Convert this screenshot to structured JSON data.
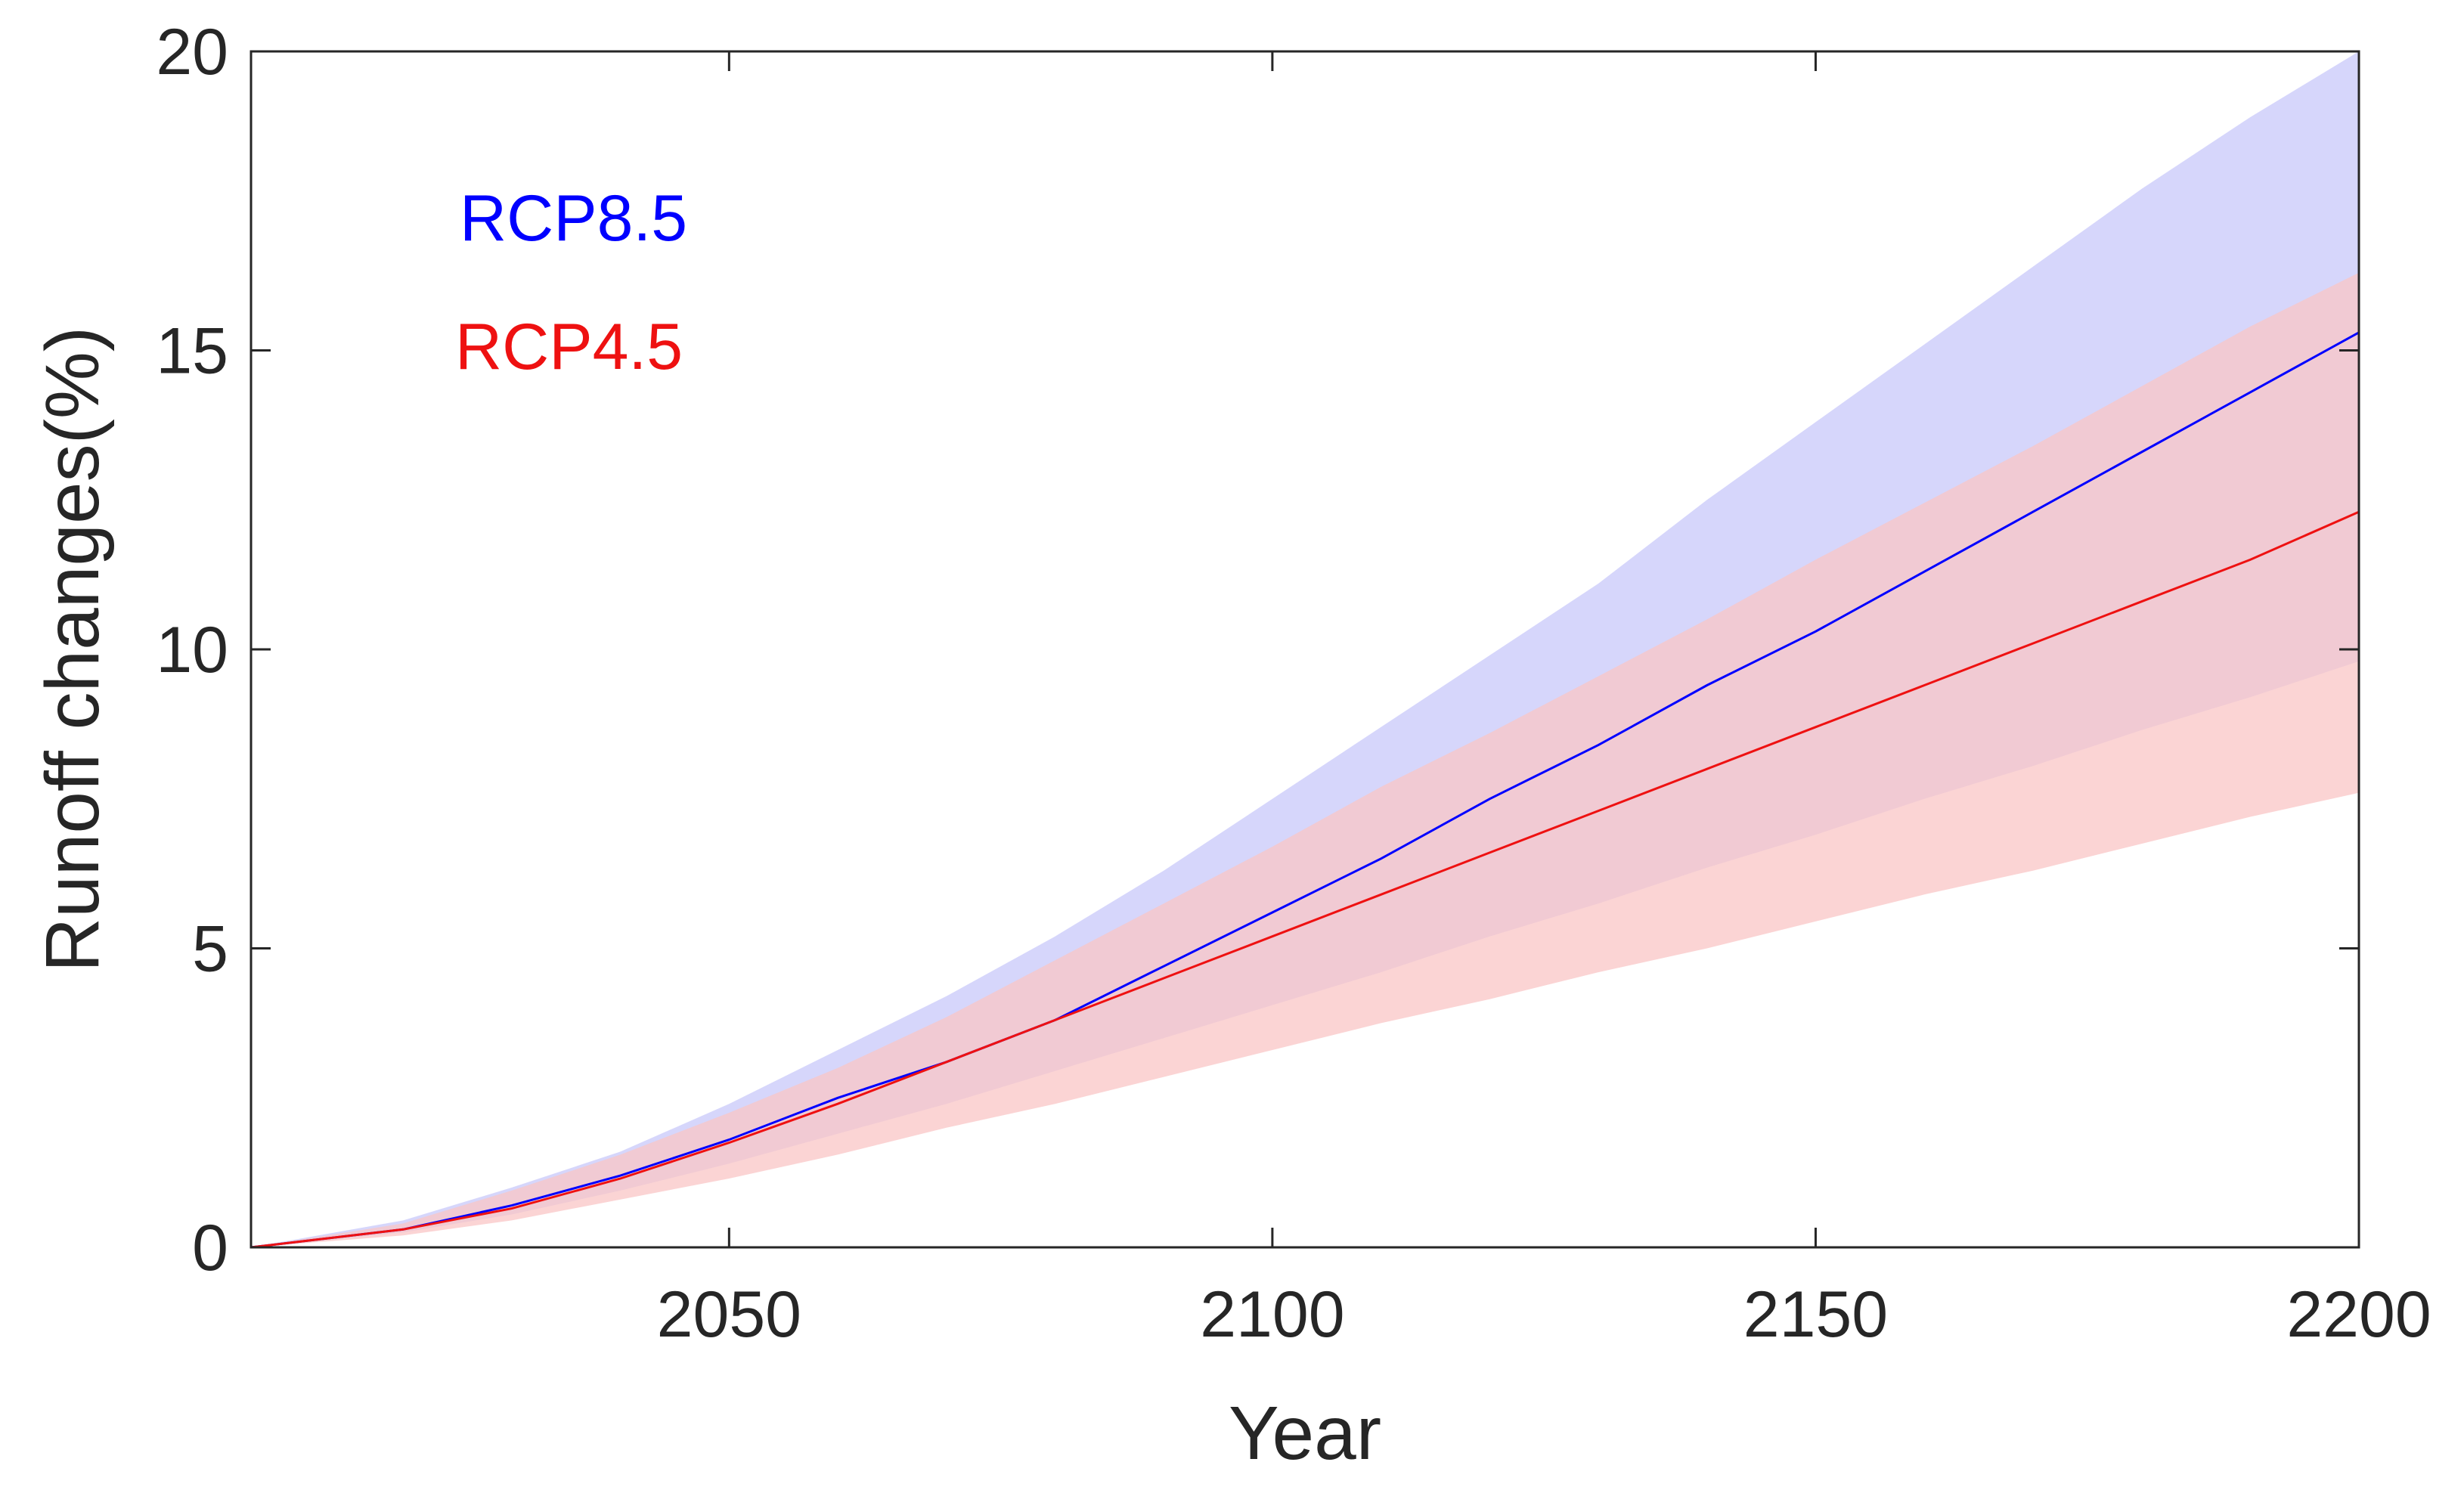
{
  "chart_data": {
    "type": "line",
    "title": "",
    "xlabel": "Year",
    "ylabel": "Runoff changes(%)",
    "xlim": [
      2006,
      2200
    ],
    "ylim": [
      0,
      20
    ],
    "xticks": [
      2050,
      2100,
      2150,
      2200
    ],
    "yticks": [
      0,
      5,
      10,
      15,
      20
    ],
    "grid": false,
    "legend_position": "top-left",
    "x": [
      2006,
      2020,
      2030,
      2040,
      2050,
      2060,
      2070,
      2080,
      2090,
      2100,
      2110,
      2120,
      2130,
      2140,
      2150,
      2160,
      2170,
      2180,
      2190,
      2200
    ],
    "series": [
      {
        "name": "RCP8.5",
        "color": "#0000ff",
        "band_color": "#c8c8fa",
        "values": [
          0,
          0.3,
          0.7,
          1.2,
          1.8,
          2.5,
          3.1,
          3.8,
          4.7,
          5.6,
          6.5,
          7.5,
          8.4,
          9.4,
          10.3,
          11.3,
          12.3,
          13.3,
          14.3,
          15.3
        ],
        "lower": [
          0,
          0.25,
          0.55,
          0.95,
          1.4,
          1.9,
          2.4,
          2.95,
          3.5,
          4.05,
          4.6,
          5.2,
          5.75,
          6.35,
          6.9,
          7.5,
          8.05,
          8.65,
          9.2,
          9.8
        ],
        "upper": [
          0,
          0.45,
          1.0,
          1.6,
          2.4,
          3.3,
          4.2,
          5.2,
          6.3,
          7.5,
          8.7,
          9.9,
          11.1,
          12.5,
          13.8,
          15.1,
          16.4,
          17.7,
          18.9,
          20.0
        ]
      },
      {
        "name": "RCP4.5",
        "color": "#ee1111",
        "band_color": "#fac6c6",
        "values": [
          0,
          0.3,
          0.65,
          1.15,
          1.75,
          2.4,
          3.1,
          3.8,
          4.5,
          5.2,
          5.9,
          6.6,
          7.3,
          8.0,
          8.7,
          9.4,
          10.1,
          10.8,
          11.5,
          12.3
        ],
        "lower": [
          0,
          0.2,
          0.45,
          0.8,
          1.15,
          1.55,
          2.0,
          2.4,
          2.85,
          3.3,
          3.75,
          4.15,
          4.6,
          5.0,
          5.45,
          5.9,
          6.3,
          6.75,
          7.2,
          7.6
        ],
        "upper": [
          0,
          0.4,
          0.95,
          1.55,
          2.25,
          3.0,
          3.85,
          4.8,
          5.75,
          6.7,
          7.7,
          8.6,
          9.55,
          10.5,
          11.5,
          12.45,
          13.4,
          14.4,
          15.4,
          16.3
        ]
      }
    ]
  }
}
